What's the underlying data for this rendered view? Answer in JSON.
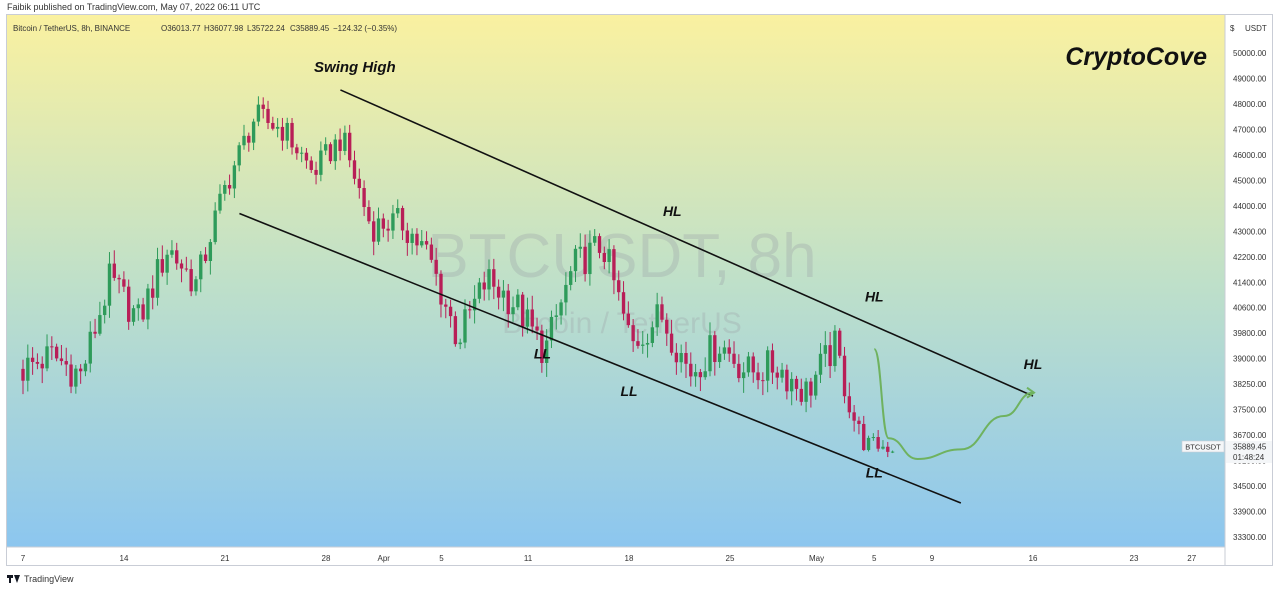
{
  "header": {
    "published_text": "Faibik published on TradingView.com, May 07, 2022 06:11 UTC"
  },
  "footer": {
    "brand_label": "TradingView"
  },
  "colors": {
    "bg_top": "#faf1a0",
    "bg_mid": "#bfe0c9",
    "bg_bottom": "#8cc6ef",
    "up": "#2e9b5a",
    "down": "#b81e57",
    "trendline": "#111111",
    "projection": "#6fb25f",
    "watermark": "#9aa0a6"
  },
  "chart_data": {
    "type": "candlestick",
    "symbol_line": "Bitcoin / TetherUS, 8h, BINANCE",
    "ohlc_readout": {
      "open": "O36013.77",
      "high": "H36077.98",
      "low": "L35722.24",
      "close": "C35889.45",
      "change": "−124.32 (−0.35%)"
    },
    "brand_title": "CryptoCove",
    "watermark_main": "BTCUSDT, 8h",
    "watermark_sub": "Bitcoin / TetherUS",
    "currency_label": "USDT",
    "y_ticks": [
      "50000.00",
      "49000.00",
      "48000.00",
      "47000.00",
      "46000.00",
      "45000.00",
      "44000.00",
      "43000.00",
      "42200.00",
      "41400.00",
      "40600.00",
      "39800.00",
      "39000.00",
      "38250.00",
      "37500.00",
      "36700.00",
      "35100.00",
      "34500.00",
      "33900.00",
      "33300.00"
    ],
    "x_ticks": [
      {
        "label": "7",
        "date": "2022-03-07"
      },
      {
        "label": "14",
        "date": "2022-03-14"
      },
      {
        "label": "21",
        "date": "2022-03-21"
      },
      {
        "label": "28",
        "date": "2022-03-28"
      },
      {
        "label": "Apr",
        "date": "2022-04-01"
      },
      {
        "label": "5",
        "date": "2022-04-05"
      },
      {
        "label": "11",
        "date": "2022-04-11"
      },
      {
        "label": "18",
        "date": "2022-04-18"
      },
      {
        "label": "25",
        "date": "2022-04-25"
      },
      {
        "label": "May",
        "date": "2022-05-01"
      },
      {
        "label": "5",
        "date": "2022-05-05"
      },
      {
        "label": "9",
        "date": "2022-05-09"
      },
      {
        "label": "16",
        "date": "2022-05-16"
      },
      {
        "label": "23",
        "date": "2022-05-23"
      },
      {
        "label": "27",
        "date": "2022-05-27"
      }
    ],
    "price_tag": {
      "symbol": "BTCUSDT",
      "price": "35889.45",
      "countdown": "01:48:24"
    },
    "swing_points": [
      38700,
      39100,
      38500,
      41500,
      40200,
      42500,
      41300,
      44800,
      47500,
      47000,
      45300,
      46700,
      43200,
      43400,
      42200,
      39600,
      41500,
      40700,
      39200,
      41900,
      42600,
      39400,
      40400,
      38600,
      39500,
      38600,
      38800,
      38000,
      39400,
      36200,
      35900
    ],
    "trendlines": [
      {
        "from": {
          "date": "2022-03-29",
          "price": 48550
        },
        "to": {
          "date": "2022-05-16",
          "price": 37900
        }
      },
      {
        "from": {
          "date": "2022-03-22",
          "price": 43700
        },
        "to": {
          "date": "2022-05-11",
          "price": 34100
        }
      }
    ],
    "projection": [
      {
        "date": "2022-05-05",
        "price": 39300
      },
      {
        "date": "2022-05-06",
        "price": 36500
      },
      {
        "date": "2022-05-08",
        "price": 35200
      },
      {
        "date": "2022-05-11",
        "price": 35800
      },
      {
        "date": "2022-05-14",
        "price": 37300
      },
      {
        "date": "2022-05-16",
        "price": 38000
      }
    ],
    "annotations": [
      {
        "text": "Swing High",
        "date": "2022-03-30",
        "price": 49250
      },
      {
        "text": "HL",
        "date": "2022-04-21",
        "price": 43600
      },
      {
        "text": "HL",
        "date": "2022-05-05",
        "price": 40800
      },
      {
        "text": "HL",
        "date": "2022-05-16",
        "price": 38700
      },
      {
        "text": "LL",
        "date": "2022-04-12",
        "price": 39000
      },
      {
        "text": "LL",
        "date": "2022-04-18",
        "price": 37900
      },
      {
        "text": "LL",
        "date": "2022-05-05",
        "price": 34700
      }
    ]
  }
}
